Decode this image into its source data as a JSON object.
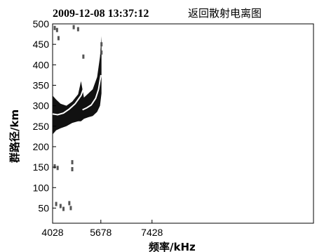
{
  "chart_data": {
    "type": "scatter",
    "title_time": "2009-12-08 13:37:12",
    "title": "返回散射电离图",
    "xlabel": "频率/kHz",
    "ylabel": "群路径/km",
    "x_ticks": [
      "4028",
      "5678",
      "7428"
    ],
    "x_tick_values": [
      4028,
      5678,
      7428
    ],
    "y_ticks": [
      "50",
      "100",
      "150",
      "200",
      "250",
      "300",
      "350",
      "400",
      "450",
      "500"
    ],
    "y_tick_values": [
      50,
      100,
      150,
      200,
      250,
      300,
      350,
      400,
      450,
      500
    ],
    "xlim": [
      4028,
      12950
    ],
    "ylim": [
      13,
      500
    ],
    "grid": false,
    "echo_band": [
      {
        "x": 4028,
        "y_min": 230,
        "y_max": 325
      },
      {
        "x": 4150,
        "y_min": 240,
        "y_max": 315
      },
      {
        "x": 4300,
        "y_min": 245,
        "y_max": 305
      },
      {
        "x": 4500,
        "y_min": 250,
        "y_max": 300
      },
      {
        "x": 4700,
        "y_min": 258,
        "y_max": 310
      },
      {
        "x": 4900,
        "y_min": 262,
        "y_max": 328
      },
      {
        "x": 5000,
        "y_min": 262,
        "y_max": 360
      },
      {
        "x": 5100,
        "y_min": 268,
        "y_max": 320
      },
      {
        "x": 5250,
        "y_min": 272,
        "y_max": 330
      },
      {
        "x": 5400,
        "y_min": 275,
        "y_max": 340
      },
      {
        "x": 5550,
        "y_min": 285,
        "y_max": 370
      },
      {
        "x": 5650,
        "y_min": 300,
        "y_max": 420
      },
      {
        "x": 5700,
        "y_min": 330,
        "y_max": 470
      }
    ],
    "series": [
      {
        "values": [
          {
            "x": 4028,
            "y": 280
          },
          {
            "x": 4200,
            "y": 278
          },
          {
            "x": 4400,
            "y": 282
          },
          {
            "x": 4600,
            "y": 292
          },
          {
            "x": 4800,
            "y": 305
          },
          {
            "x": 5000,
            "y": 325
          },
          {
            "x": 5100,
            "y": 345
          }
        ]
      },
      {
        "values": [
          {
            "x": 5050,
            "y": 290
          },
          {
            "x": 5200,
            "y": 295
          },
          {
            "x": 5350,
            "y": 302
          },
          {
            "x": 5500,
            "y": 318
          },
          {
            "x": 5600,
            "y": 340
          },
          {
            "x": 5680,
            "y": 375
          }
        ]
      }
    ],
    "scattered_echoes": [
      {
        "x": 4100,
        "y": 490
      },
      {
        "x": 4180,
        "y": 485
      },
      {
        "x": 4230,
        "y": 465
      },
      {
        "x": 4750,
        "y": 492
      },
      {
        "x": 4900,
        "y": 487
      },
      {
        "x": 5080,
        "y": 420
      },
      {
        "x": 5700,
        "y": 450
      },
      {
        "x": 5700,
        "y": 430
      },
      {
        "x": 4100,
        "y": 152
      },
      {
        "x": 4200,
        "y": 148
      },
      {
        "x": 4700,
        "y": 162
      },
      {
        "x": 4700,
        "y": 145
      },
      {
        "x": 4150,
        "y": 60
      },
      {
        "x": 4300,
        "y": 55
      },
      {
        "x": 4400,
        "y": 48
      },
      {
        "x": 4600,
        "y": 62
      },
      {
        "x": 4650,
        "y": 50
      }
    ]
  }
}
